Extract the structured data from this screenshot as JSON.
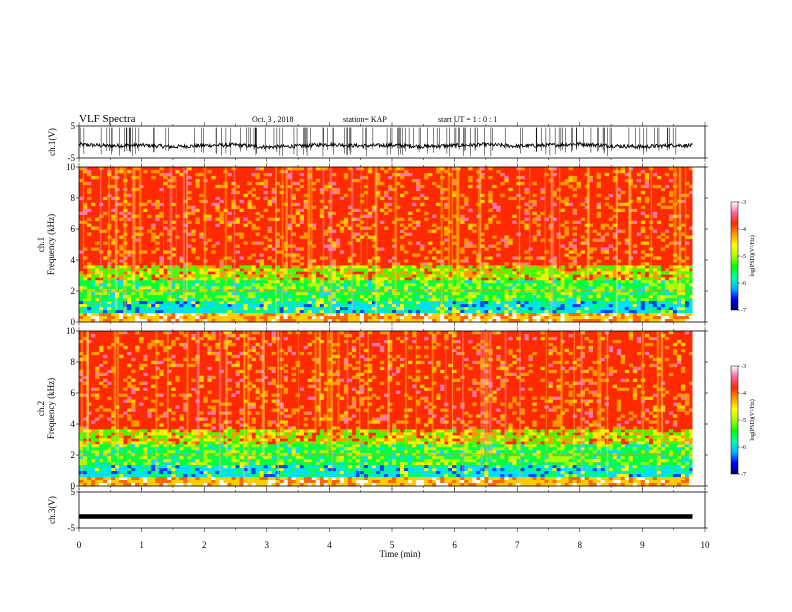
{
  "header": {
    "title": "VLF Spectra",
    "date": "Oct. 3 , 2018",
    "station": "station= KAP",
    "start_ut": "start UT =  1 : 0 : 1"
  },
  "chart_data": [
    {
      "type": "line",
      "panel": "ch1-waveform",
      "ylabel": "ch.1(V)",
      "ylim": [
        -5,
        5
      ],
      "yticks": [
        "5",
        "-5"
      ],
      "xlim": [
        0,
        10
      ],
      "x": [
        0,
        0.5,
        1,
        1.5,
        2,
        2.5,
        3,
        3.5,
        4,
        4.5,
        5,
        5.5,
        6,
        6.5,
        7,
        7.5,
        8,
        8.5,
        9,
        9.5,
        9.8
      ],
      "series": [
        {
          "values": [
            -0.8,
            -1.2,
            -1.0,
            -1.5,
            -1.1,
            -0.9,
            -1.6,
            -1.3,
            -0.7,
            -1.2,
            -1.0,
            -1.4,
            -1.1,
            -0.8,
            -1.3,
            -1.0,
            -0.6,
            -1.2,
            -1.5,
            -1.0,
            -1.1
          ],
          "color": "#000000"
        }
      ]
    },
    {
      "type": "heatmap",
      "panel": "ch1-spectrogram",
      "ylabel": "ch.1\nFrequency (kHz)",
      "ylim": [
        0,
        10
      ],
      "yticks": [
        "0",
        "2",
        "4",
        "6",
        "8",
        "10"
      ],
      "xlim": [
        0,
        10
      ],
      "colorbar": {
        "label": "log(PSD)(V²/Hz)",
        "range": [
          -7,
          -3
        ],
        "ticks": [
          "-3",
          "-4",
          "-5",
          "-6",
          "-7"
        ]
      }
    },
    {
      "type": "heatmap",
      "panel": "ch2-spectrogram",
      "ylabel": "ch.2\nFrequency (kHz)",
      "ylim": [
        0,
        10
      ],
      "yticks": [
        "0",
        "2",
        "4",
        "6",
        "8",
        "10"
      ],
      "xlim": [
        0,
        10
      ],
      "colorbar": {
        "label": "log(PSD)(V²/Hz)",
        "range": [
          -7,
          -3
        ],
        "ticks": [
          "-3",
          "-4",
          "-5",
          "-6",
          "-7"
        ]
      }
    },
    {
      "type": "line",
      "panel": "ch3-waveform",
      "ylabel": "ch.3(V)",
      "ylim": [
        -5,
        5
      ],
      "yticks": [
        "5",
        "-5"
      ],
      "xlim": [
        0,
        10
      ],
      "x": [
        0,
        9.8
      ],
      "series": [
        {
          "values": [
            -1.8,
            -1.8
          ],
          "color": "#000000"
        }
      ]
    }
  ],
  "xaxis": {
    "label": "Time (min)",
    "ticks": [
      "0",
      "1",
      "2",
      "3",
      "4",
      "5",
      "6",
      "7",
      "8",
      "9",
      "10"
    ]
  },
  "colors": {
    "ink": "#000000",
    "colormap": [
      "#000066",
      "#0000ff",
      "#00b4ff",
      "#00ffaa",
      "#00ff00",
      "#aaff00",
      "#ffff00",
      "#ff9900",
      "#ff2a00",
      "#ff6699",
      "#ffffff"
    ]
  }
}
